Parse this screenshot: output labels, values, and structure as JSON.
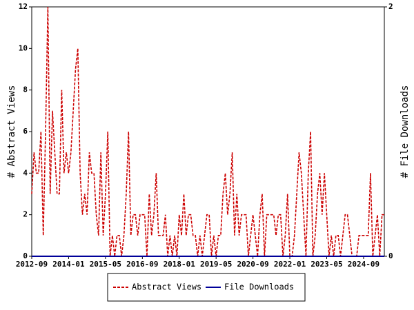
{
  "chart_data": {
    "type": "line",
    "y_label": "# Abstract Views",
    "y2_label": "# File Downloads",
    "x": [
      "2012-09",
      "2012-10",
      "2012-11",
      "2012-12",
      "2013-01",
      "2013-02",
      "2013-03",
      "2013-04",
      "2013-05",
      "2013-06",
      "2013-07",
      "2013-08",
      "2013-09",
      "2013-10",
      "2013-11",
      "2013-12",
      "2014-01",
      "2014-02",
      "2014-03",
      "2014-04",
      "2014-05",
      "2014-06",
      "2014-07",
      "2014-08",
      "2014-09",
      "2014-10",
      "2014-11",
      "2014-12",
      "2015-01",
      "2015-02",
      "2015-03",
      "2015-04",
      "2015-05",
      "2015-06",
      "2015-07",
      "2015-08",
      "2015-09",
      "2015-10",
      "2015-11",
      "2015-12",
      "2016-01",
      "2016-02",
      "2016-03",
      "2016-04",
      "2016-05",
      "2016-06",
      "2016-07",
      "2016-08",
      "2016-09",
      "2016-10",
      "2016-11",
      "2016-12",
      "2017-01",
      "2017-02",
      "2017-03",
      "2017-04",
      "2017-05",
      "2017-06",
      "2017-07",
      "2017-08",
      "2017-09",
      "2017-10",
      "2017-11",
      "2017-12",
      "2018-01",
      "2018-02",
      "2018-03",
      "2018-04",
      "2018-05",
      "2018-06",
      "2018-07",
      "2018-08",
      "2018-09",
      "2018-10",
      "2018-11",
      "2018-12",
      "2019-01",
      "2019-02",
      "2019-03",
      "2019-04",
      "2019-05",
      "2019-06",
      "2019-07",
      "2019-08",
      "2019-09",
      "2019-10",
      "2019-11",
      "2019-12",
      "2020-01",
      "2020-02",
      "2020-03",
      "2020-04",
      "2020-05",
      "2020-06",
      "2020-07",
      "2020-08",
      "2020-09",
      "2020-10",
      "2020-11",
      "2020-12",
      "2021-01",
      "2021-02",
      "2021-03",
      "2021-04",
      "2021-05",
      "2021-06",
      "2021-07",
      "2021-08",
      "2021-09",
      "2021-10",
      "2021-11",
      "2021-12",
      "2022-01",
      "2022-02",
      "2022-03",
      "2022-04",
      "2022-05",
      "2022-06",
      "2022-07",
      "2022-08",
      "2022-09",
      "2022-10",
      "2022-11",
      "2022-12",
      "2023-01",
      "2023-02",
      "2023-03",
      "2023-04",
      "2023-05",
      "2023-06",
      "2023-07",
      "2023-08",
      "2023-09",
      "2023-10",
      "2023-11",
      "2023-12",
      "2024-01",
      "2024-02",
      "2024-03",
      "2024-04",
      "2024-05",
      "2024-06",
      "2024-07",
      "2024-08",
      "2024-09",
      "2024-10",
      "2024-11",
      "2024-12",
      "2025-01",
      "2025-02",
      "2025-03",
      "2025-04",
      "2025-05",
      "2025-06"
    ],
    "series": [
      {
        "name": "Abstract Views",
        "color": "#cc0000",
        "dashed": true,
        "values": [
          3,
          5,
          4,
          4,
          6,
          1,
          6,
          12,
          3,
          7,
          5,
          3,
          3,
          8,
          4,
          5,
          4,
          5,
          7,
          9,
          10,
          4,
          2,
          3,
          2,
          5,
          4,
          4,
          2,
          1,
          5,
          1,
          3,
          6,
          0,
          1,
          0,
          1,
          1,
          0,
          1,
          3,
          6,
          1,
          2,
          2,
          1,
          2,
          2,
          2,
          0,
          3,
          1,
          2,
          4,
          1,
          1,
          1,
          2,
          0,
          1,
          0,
          1,
          0,
          2,
          1,
          3,
          1,
          2,
          2,
          1,
          1,
          0,
          1,
          0,
          1,
          2,
          2,
          0,
          1,
          0,
          1,
          1,
          3,
          4,
          2,
          3,
          5,
          1,
          3,
          1,
          2,
          2,
          2,
          0,
          1,
          2,
          1,
          0,
          2,
          3,
          0,
          2,
          2,
          2,
          2,
          1,
          2,
          2,
          0,
          1,
          3,
          0,
          0,
          1,
          3,
          5,
          4,
          2,
          0,
          4,
          6,
          0,
          1,
          3,
          4,
          2,
          4,
          2,
          0,
          1,
          0,
          1,
          1,
          0,
          1,
          2,
          2,
          1,
          0,
          0,
          0,
          1,
          1,
          1,
          1,
          1,
          4,
          0,
          1,
          2,
          0,
          2,
          2
        ]
      },
      {
        "name": "File Downloads",
        "color": "#000099",
        "dashed": false,
        "axis": "y2",
        "values": [
          0,
          0,
          0,
          0,
          0,
          0,
          0,
          0,
          0,
          0,
          0,
          0,
          0,
          0,
          0,
          0,
          0,
          0,
          0,
          0,
          0,
          0,
          0,
          0,
          0,
          0,
          0,
          0,
          0,
          0,
          0,
          0,
          0,
          0,
          0,
          0,
          0,
          0,
          0,
          0,
          0,
          0,
          0,
          0,
          0,
          0,
          0,
          0,
          0,
          0,
          0,
          0,
          0,
          0,
          0,
          0,
          0,
          0,
          0,
          0,
          0,
          0,
          0,
          0,
          0,
          0,
          0,
          0,
          0,
          0,
          0,
          0,
          0,
          0,
          0,
          0,
          0,
          0,
          0,
          0,
          0,
          0,
          0,
          0,
          0,
          0,
          0,
          0,
          0,
          0,
          0,
          0,
          0,
          0,
          0,
          0,
          0,
          0,
          0,
          0,
          0,
          0,
          0,
          0,
          0,
          0,
          0,
          0,
          0,
          0,
          0,
          0,
          0,
          0,
          0,
          0,
          0,
          0,
          0,
          0,
          0,
          0,
          0,
          0,
          0,
          0,
          0,
          0,
          0,
          0,
          0,
          0,
          0,
          0,
          0,
          0,
          0,
          0,
          0,
          0,
          0,
          0,
          0,
          0,
          0,
          0,
          0,
          0,
          0,
          0,
          0,
          0,
          0,
          0
        ]
      }
    ],
    "xticks": [
      "2012-09",
      "2014-01",
      "2015-05",
      "2016-09",
      "2018-01",
      "2019-05",
      "2020-09",
      "2022-01",
      "2023-05",
      "2024-09"
    ],
    "ylim": [
      0,
      12
    ],
    "yticks": [
      0,
      2,
      4,
      6,
      8,
      10,
      12
    ],
    "y2lim": [
      0,
      2
    ],
    "y2ticks": [
      0,
      2
    ]
  }
}
